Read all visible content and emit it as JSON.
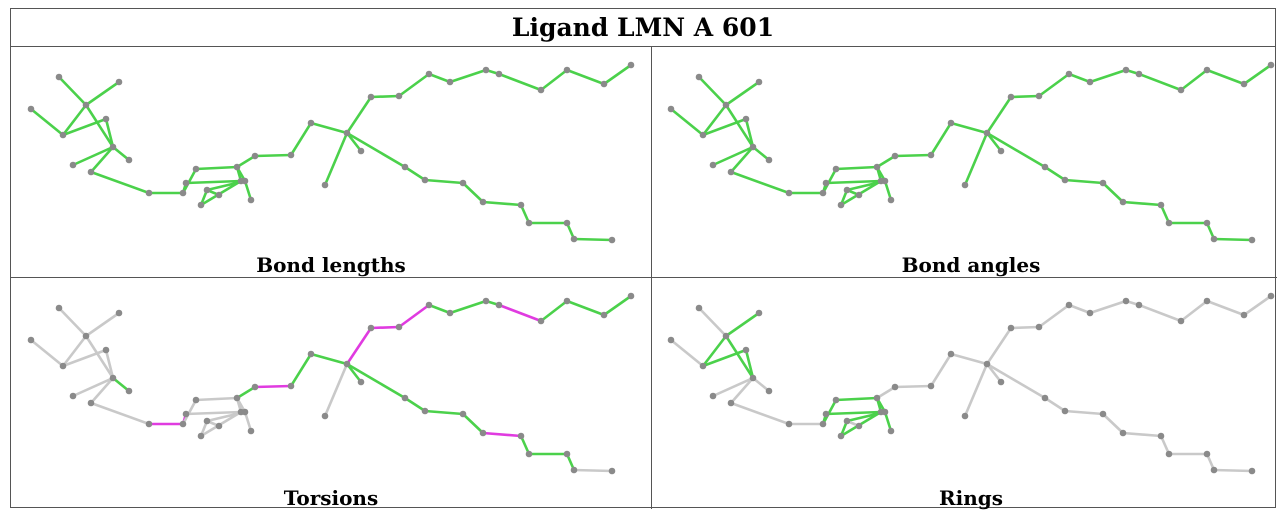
{
  "title": "Ligand LMN A 601",
  "colors": {
    "ok": "#4bd14b",
    "ok_dark": "#2a9a2a",
    "outlier": "#e03be0",
    "neutral": "#c9c9c9",
    "atom": "#8a8a8a"
  },
  "panels": [
    {
      "id": "bond-lengths",
      "caption": "Bond lengths"
    },
    {
      "id": "bond-angles",
      "caption": "Bond angles"
    },
    {
      "id": "torsions",
      "caption": "Torsions"
    },
    {
      "id": "rings",
      "caption": "Rings"
    }
  ]
}
